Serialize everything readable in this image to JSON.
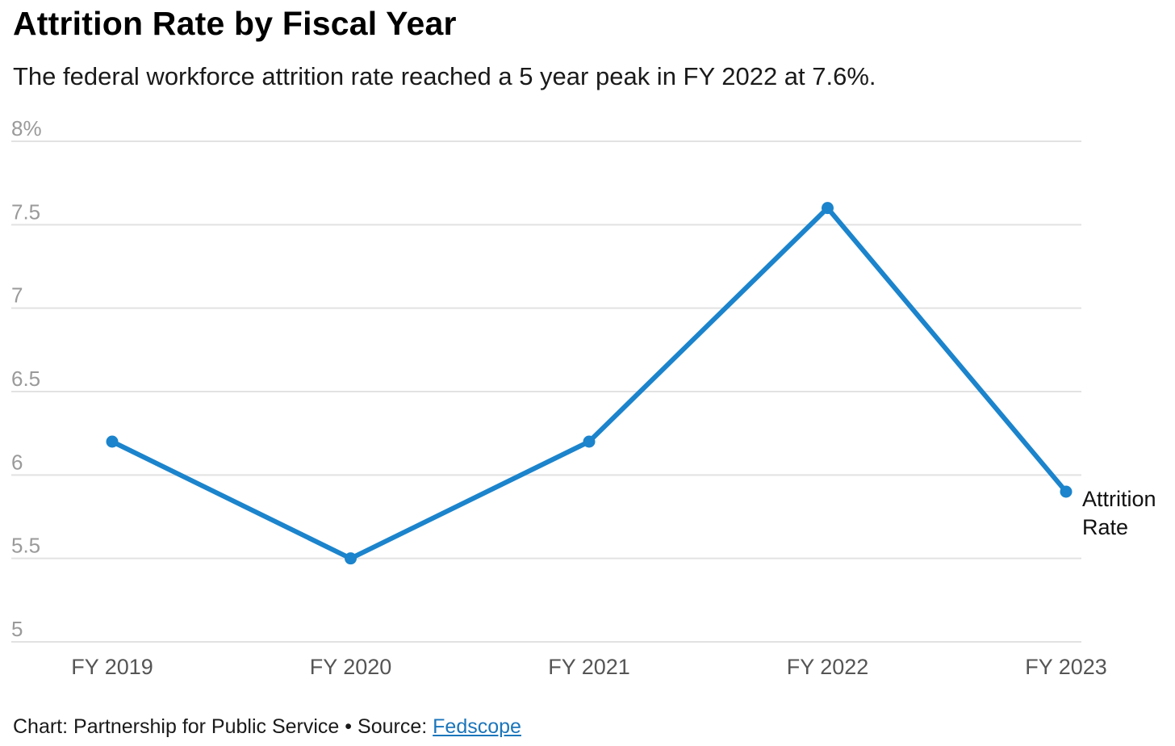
{
  "title": "Attrition Rate by Fiscal Year",
  "subtitle": "The federal workforce attrition rate reached a 5 year peak in FY 2022 at 7.6%.",
  "chart_data": {
    "type": "line",
    "categories": [
      "FY 2019",
      "FY 2020",
      "FY 2021",
      "FY 2022",
      "FY 2023"
    ],
    "series": [
      {
        "name": "Attrition Rate",
        "label_lines": [
          "Attrition",
          "Rate"
        ],
        "values": [
          6.2,
          5.5,
          6.2,
          7.6,
          5.9
        ],
        "color": "#1b84cc"
      }
    ],
    "ylim": [
      5,
      8
    ],
    "yticks": [
      5,
      5.5,
      6,
      6.5,
      7,
      7.5,
      8
    ],
    "ytick_labels": [
      "5",
      "5.5",
      "6",
      "6.5",
      "7",
      "7.5",
      "8%"
    ],
    "grid": true,
    "legend": "end-of-line label"
  },
  "footer": {
    "chart_credit": "Chart: Partnership for Public Service",
    "separator": "•",
    "source_prefix": "Source:",
    "source_link": "Fedscope"
  },
  "colors": {
    "line": "#1b84cc",
    "grid": "#e2e2e2",
    "tick_text": "#9a9a9a",
    "category_text": "#555555",
    "link": "#1b75bb"
  }
}
